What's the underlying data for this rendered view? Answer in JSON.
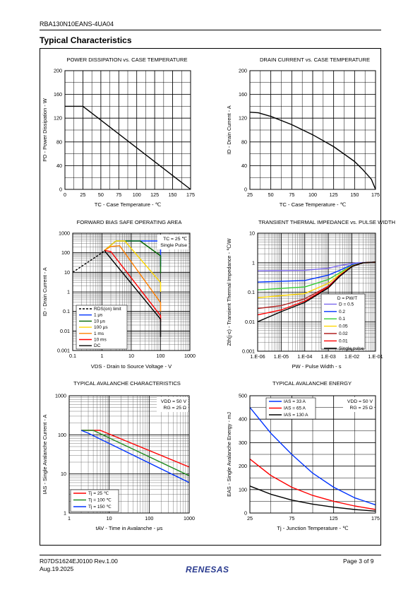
{
  "header": {
    "part_number": "RBA130N10EANS-4UA04"
  },
  "section_title": "Typical Characteristics",
  "footer": {
    "doc_number": "R07DS1624EJ0100  Rev.1.00",
    "date": "Aug.19.2025",
    "page": "Page 3 of 9",
    "logo_text": "RENESAS"
  },
  "colors": {
    "black": "#000000",
    "blue": "#0033ff",
    "red": "#ff0000",
    "green": "#006400",
    "gold": "#ffd700",
    "orange": "#ff7f00",
    "violet": "#7b68ee",
    "darkred": "#8b0000",
    "ltgreen": "#32cd32",
    "brick": "#b22222",
    "dkgreen": "#228b22",
    "navy": "#00008b",
    "grid": "#000000"
  },
  "chart_data": [
    {
      "id": "pd-vs-tc",
      "type": "line",
      "title": "POWER DISSIPATION vs. CASE TEMPERATURE",
      "xlabel": "TC - Case Temperature - ℃",
      "ylabel": "PD - Power Dissipation - W",
      "xlim": [
        0,
        175
      ],
      "ylim": [
        0,
        200
      ],
      "xticks": [
        0,
        25,
        50,
        75,
        100,
        125,
        150,
        175
      ],
      "yticks": [
        0,
        40,
        80,
        120,
        160,
        200
      ],
      "xtick_labels": [
        "0",
        "25",
        "50",
        "75",
        "100",
        "125",
        "150",
        "175"
      ],
      "ytick_labels": [
        "0",
        "40",
        "80",
        "120",
        "160",
        "200"
      ],
      "grid": true,
      "series": [
        {
          "color": "black",
          "x": [
            0,
            25,
            175
          ],
          "y": [
            140,
            140,
            0
          ]
        }
      ]
    },
    {
      "id": "id-vs-tc",
      "type": "line",
      "title": "DRAIN CURRENT vs. CASE TEMPERATURE",
      "xlabel": "TC - Case Temperature - ℃",
      "ylabel": "ID - Drain Current - A",
      "xlim": [
        25,
        175
      ],
      "ylim": [
        0,
        200
      ],
      "xticks": [
        25,
        50,
        75,
        100,
        125,
        150,
        175
      ],
      "yticks": [
        0,
        40,
        80,
        120,
        160,
        200
      ],
      "xtick_labels": [
        "25",
        "50",
        "75",
        "100",
        "125",
        "150",
        "175"
      ],
      "ytick_labels": [
        "0",
        "40",
        "80",
        "120",
        "160",
        "200"
      ],
      "grid": true,
      "series": [
        {
          "color": "black",
          "x": [
            25,
            35,
            50,
            75,
            100,
            125,
            150,
            160,
            170,
            175
          ],
          "y": [
            130,
            129,
            123,
            109,
            92,
            72,
            47,
            33,
            17,
            0
          ]
        }
      ]
    },
    {
      "id": "fbsoa",
      "type": "line",
      "title": "FORWARD BIAS SAFE OPERATING AREA",
      "xlabel": "VDS - Drain to Source Voltage - V",
      "ylabel": "ID - Drain Current - A",
      "xscale": "log",
      "yscale": "log",
      "xlim": [
        0.1,
        1000
      ],
      "ylim": [
        0.001,
        1000
      ],
      "xticks": [
        0.1,
        1,
        10,
        100,
        1000
      ],
      "yticks": [
        0.001,
        0.01,
        0.1,
        1,
        10,
        100,
        1000
      ],
      "xtick_labels": [
        "0.1",
        "1",
        "10",
        "100",
        "1000"
      ],
      "ytick_labels": [
        "0.001",
        "0.01",
        "0.1",
        "1",
        "10",
        "100",
        "1000"
      ],
      "grid": true,
      "annotation": [
        "TC = 25 ℃",
        "Single Pulse"
      ],
      "legend_position": "bottom-left",
      "series": [
        {
          "name": "RDS(on) limit",
          "color": "black",
          "dash": true,
          "x": [
            0.1,
            1,
            1.2
          ],
          "y": [
            10,
            100,
            130
          ]
        },
        {
          "name": "1 μs",
          "color": "blue",
          "x": [
            1.2,
            3,
            100,
            100
          ],
          "y": [
            130,
            400,
            400,
            20
          ]
        },
        {
          "name": "10 μs",
          "color": "green",
          "x": [
            1.2,
            3,
            20,
            100,
            100
          ],
          "y": [
            130,
            400,
            400,
            70,
            9
          ]
        },
        {
          "name": "100 μs",
          "color": "gold",
          "x": [
            1.2,
            3,
            6,
            100,
            100
          ],
          "y": [
            130,
            400,
            400,
            3,
            1
          ]
        },
        {
          "name": "1 ms",
          "color": "orange",
          "x": [
            1.2,
            2,
            4,
            100,
            100
          ],
          "y": [
            130,
            210,
            230,
            0.28,
            0.1
          ]
        },
        {
          "name": "10 ms",
          "color": "red",
          "x": [
            1.2,
            2,
            100,
            100
          ],
          "y": [
            130,
            115,
            0.06,
            0.03
          ]
        },
        {
          "name": "DC",
          "color": "black",
          "x": [
            1.2,
            100,
            100
          ],
          "y": [
            130,
            0.04,
            0.005
          ]
        }
      ]
    },
    {
      "id": "zth",
      "type": "line",
      "title": "TRANSIENT THERMAL IMPEDANCE vs. PULSE WIDTH",
      "xlabel": "PW - Pulse Width - s",
      "ylabel": "Zth(j-c) - Transient Thermal Impedance - ℃/W",
      "xscale": "log",
      "yscale": "log",
      "xlim": [
        1e-06,
        0.1
      ],
      "ylim": [
        0.001,
        10
      ],
      "xticks": [
        1e-06,
        1e-05,
        0.0001,
        0.001,
        0.01,
        0.1
      ],
      "yticks": [
        0.001,
        0.01,
        0.1,
        1,
        10
      ],
      "xtick_labels": [
        "1.E-06",
        "1.E-05",
        "1.E-04",
        "1.E-03",
        "1.E-02",
        "1.E-01"
      ],
      "ytick_labels": [
        "0.001",
        "0.01",
        "0.1",
        "1",
        "10"
      ],
      "grid": true,
      "legend_title": "D = PW/T",
      "legend_position": "bottom-right",
      "series": [
        {
          "name": "D = 0.5",
          "color": "violet",
          "x": [
            1e-06,
            0.0001,
            0.001,
            0.003,
            0.01,
            0.03,
            0.1
          ],
          "y": [
            0.53,
            0.55,
            0.65,
            0.8,
            0.95,
            1.02,
            1.05
          ]
        },
        {
          "name": "0.2",
          "color": "blue",
          "x": [
            1e-06,
            0.0001,
            0.001,
            0.003,
            0.01,
            0.03,
            0.1
          ],
          "y": [
            0.22,
            0.25,
            0.38,
            0.55,
            0.85,
            1.0,
            1.05
          ]
        },
        {
          "name": "0.1",
          "color": "ltgreen",
          "x": [
            1e-06,
            0.0001,
            0.001,
            0.003,
            0.01,
            0.03,
            0.1
          ],
          "y": [
            0.12,
            0.15,
            0.27,
            0.45,
            0.8,
            1.0,
            1.05
          ]
        },
        {
          "name": "0.05",
          "color": "gold",
          "x": [
            1e-06,
            0.0001,
            0.001,
            0.003,
            0.01,
            0.03,
            0.1
          ],
          "y": [
            0.065,
            0.09,
            0.2,
            0.4,
            0.78,
            1.0,
            1.05
          ]
        },
        {
          "name": "0.02",
          "color": "brick",
          "x": [
            1e-06,
            1e-05,
            0.0001,
            0.001,
            0.003,
            0.01,
            0.03,
            0.1
          ],
          "y": [
            0.028,
            0.035,
            0.06,
            0.16,
            0.37,
            0.76,
            1.0,
            1.05
          ]
        },
        {
          "name": "0.01",
          "color": "red",
          "x": [
            1e-06,
            1e-05,
            0.0001,
            0.001,
            0.003,
            0.01,
            0.03,
            0.1
          ],
          "y": [
            0.017,
            0.025,
            0.05,
            0.15,
            0.35,
            0.75,
            1.0,
            1.05
          ]
        },
        {
          "name": "Single pulse",
          "color": "black",
          "x": [
            1e-06,
            1e-05,
            0.0001,
            0.001,
            0.003,
            0.01,
            0.03,
            0.1
          ],
          "y": [
            0.01,
            0.022,
            0.045,
            0.14,
            0.34,
            0.74,
            1.0,
            1.05
          ]
        }
      ]
    },
    {
      "id": "avalanche-current",
      "type": "line",
      "title": "TYPICAL AVALANCHE CHARACTERISTICS",
      "xlabel": "tAV - Time in Avalanche - μs",
      "ylabel": "IAS - Single Avalanche Current - A",
      "xscale": "log",
      "yscale": "log",
      "xlim": [
        1,
        1000
      ],
      "ylim": [
        1,
        1000
      ],
      "xticks": [
        1,
        10,
        100,
        1000
      ],
      "yticks": [
        1,
        10,
        100,
        1000
      ],
      "xtick_labels": [
        "1",
        "10",
        "100",
        "1000"
      ],
      "ytick_labels": [
        "1",
        "10",
        "100",
        "1000"
      ],
      "grid": true,
      "annotation": [
        "VDD = 50 V",
        "RG = 25 Ω"
      ],
      "legend_position": "bottom-left",
      "series": [
        {
          "name": "Tj = 25 ℃",
          "color": "red",
          "x": [
            2,
            6,
            1000
          ],
          "y": [
            130,
            130,
            15
          ]
        },
        {
          "name": "Tj = 100 ℃",
          "color": "dkgreen",
          "x": [
            2,
            4,
            1000
          ],
          "y": [
            130,
            130,
            9
          ]
        },
        {
          "name": "Tj = 150 ℃",
          "color": "blue",
          "x": [
            2,
            3,
            1000
          ],
          "y": [
            130,
            110,
            6
          ]
        }
      ]
    },
    {
      "id": "avalanche-energy",
      "type": "line",
      "title": "TYPICAL AVALANCHE ENERGY",
      "xlabel": "Tj - Junction Temperature - ℃",
      "ylabel": "EAS - Single Avalanche Energy - mJ",
      "xlim": [
        25,
        175
      ],
      "ylim": [
        0,
        500
      ],
      "xticks": [
        25,
        75,
        125,
        175
      ],
      "yticks": [
        0,
        100,
        200,
        300,
        400,
        500
      ],
      "xtick_labels": [
        "25",
        "75",
        "125",
        "175"
      ],
      "ytick_labels": [
        "0",
        "100",
        "200",
        "300",
        "400",
        "500"
      ],
      "grid": true,
      "annotation": [
        "VDD = 50 V",
        "RG = 25 Ω"
      ],
      "legend_position": "top-left",
      "series": [
        {
          "name": "IAS = 33 A",
          "color": "blue",
          "x": [
            25,
            50,
            75,
            100,
            125,
            150,
            175
          ],
          "y": [
            450,
            340,
            250,
            170,
            110,
            65,
            35
          ]
        },
        {
          "name": "IAS = 65 A",
          "color": "red",
          "x": [
            25,
            50,
            75,
            100,
            125,
            150,
            175
          ],
          "y": [
            230,
            160,
            110,
            75,
            50,
            30,
            15
          ]
        },
        {
          "name": "IAS = 130 A",
          "color": "black",
          "x": [
            25,
            50,
            75,
            100,
            125,
            150,
            175
          ],
          "y": [
            115,
            80,
            55,
            38,
            25,
            15,
            8
          ]
        }
      ]
    }
  ]
}
